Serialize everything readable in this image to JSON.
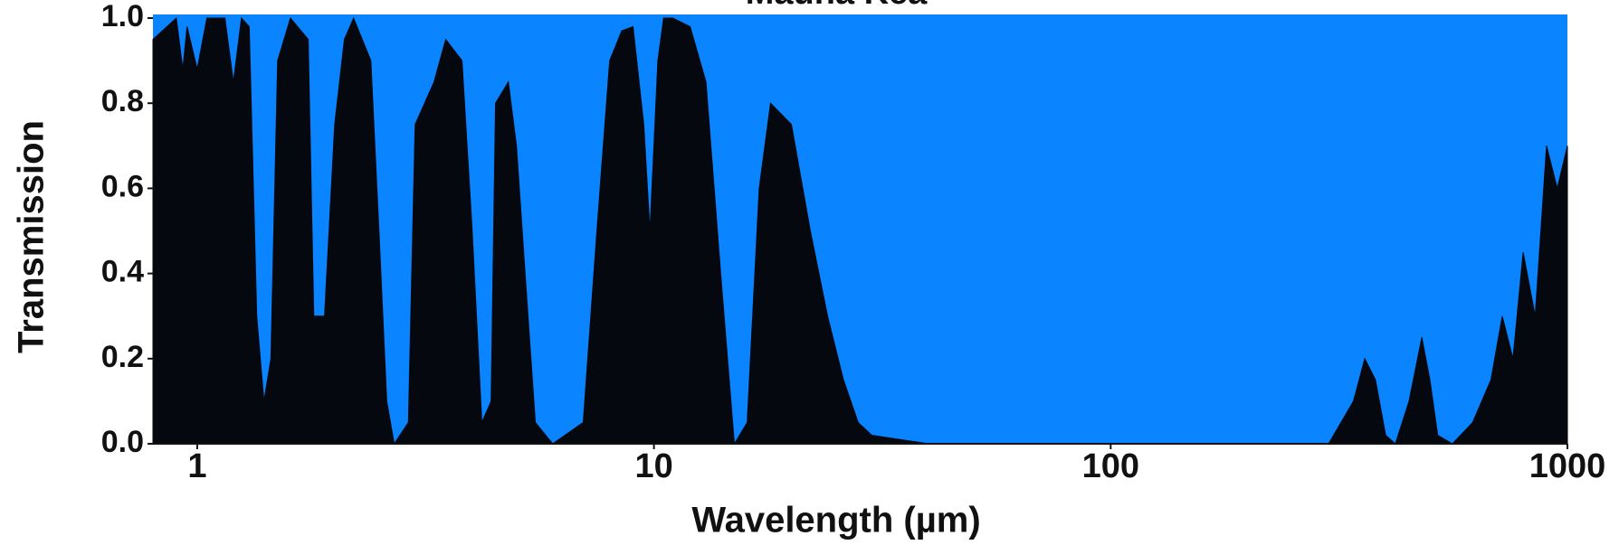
{
  "chart_data": {
    "type": "area",
    "title": "Mauna Kea",
    "x_label": "Wavelength (µm)",
    "y_label": "Transmission",
    "log_x": true,
    "background": "#0a84ff",
    "color": "#05090f",
    "xlim": [
      0.8,
      1000
    ],
    "ylim": [
      0,
      1
    ],
    "xticks": [
      1,
      10,
      100,
      1000
    ],
    "yticks": [
      {
        "value": 0,
        "label": "0.0"
      },
      0.2,
      0.4,
      0.6,
      0.8,
      {
        "value": 1,
        "label": "1.0"
      }
    ],
    "x": [
      0.8,
      0.9,
      0.93,
      0.95,
      1.0,
      1.05,
      1.15,
      1.2,
      1.25,
      1.3,
      1.35,
      1.4,
      1.45,
      1.5,
      1.6,
      1.75,
      1.8,
      1.9,
      2.0,
      2.1,
      2.2,
      2.4,
      2.5,
      2.6,
      2.7,
      2.9,
      3.0,
      3.3,
      3.5,
      3.8,
      4.0,
      4.2,
      4.4,
      4.5,
      4.8,
      5.0,
      5.3,
      5.5,
      6.0,
      7.0,
      7.5,
      8.0,
      8.5,
      9.0,
      9.5,
      9.8,
      10.2,
      10.5,
      11,
      12,
      13,
      14,
      15,
      16,
      17,
      18,
      20,
      22,
      24,
      26,
      28,
      30,
      40,
      300,
      340,
      360,
      380,
      400,
      420,
      450,
      480,
      500,
      520,
      560,
      620,
      680,
      720,
      760,
      800,
      850,
      900,
      950,
      1000
    ],
    "values": [
      0.95,
      1.0,
      0.88,
      0.98,
      0.88,
      1.0,
      1.0,
      0.85,
      1.0,
      0.98,
      0.3,
      0.1,
      0.2,
      0.9,
      1.0,
      0.95,
      0.3,
      0.3,
      0.75,
      0.95,
      1.0,
      0.9,
      0.5,
      0.1,
      0.0,
      0.05,
      0.75,
      0.85,
      0.95,
      0.9,
      0.5,
      0.05,
      0.1,
      0.8,
      0.85,
      0.7,
      0.3,
      0.05,
      0.0,
      0.05,
      0.5,
      0.9,
      0.97,
      0.98,
      0.75,
      0.5,
      0.9,
      1.0,
      1.0,
      0.98,
      0.85,
      0.4,
      0.0,
      0.05,
      0.6,
      0.8,
      0.75,
      0.5,
      0.3,
      0.15,
      0.05,
      0.02,
      0.0,
      0.0,
      0.1,
      0.2,
      0.15,
      0.02,
      0.0,
      0.1,
      0.25,
      0.15,
      0.02,
      0.0,
      0.05,
      0.15,
      0.3,
      0.2,
      0.45,
      0.3,
      0.7,
      0.6,
      0.7
    ]
  }
}
